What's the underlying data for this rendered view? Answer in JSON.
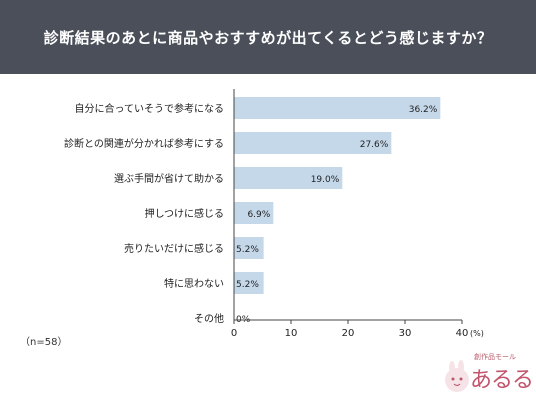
{
  "title": "診断結果のあとに商品やおすすめが出てくるとどう感じますか？",
  "sample_note": "（n=58）",
  "logo": {
    "small_text": "創作品モール",
    "main_text": "あるる"
  },
  "colors": {
    "header_bg": "#4a4f5a",
    "bar": "#c5d8ea",
    "axis": "#444444"
  },
  "chart_data": {
    "type": "bar",
    "orientation": "horizontal",
    "categories": [
      "自分に合っていそうで参考になる",
      "診断との関連が分かれば参考にする",
      "選ぶ手間が省けて助かる",
      "押しつけに感じる",
      "売りたいだけに感じる",
      "特に思わない",
      "その他"
    ],
    "values": [
      36.2,
      27.6,
      19.0,
      6.9,
      5.2,
      5.2,
      0
    ],
    "value_labels": [
      "36.2%",
      "27.6%",
      "19.0%",
      "6.9%",
      "5.2%",
      "5.2%",
      "0%"
    ],
    "xlim": [
      0,
      40
    ],
    "xticks": [
      0,
      10,
      20,
      30,
      40
    ],
    "xtick_labels": [
      "0",
      "10",
      "20",
      "30",
      "40"
    ],
    "x_unit": "(%)",
    "grid": false
  }
}
